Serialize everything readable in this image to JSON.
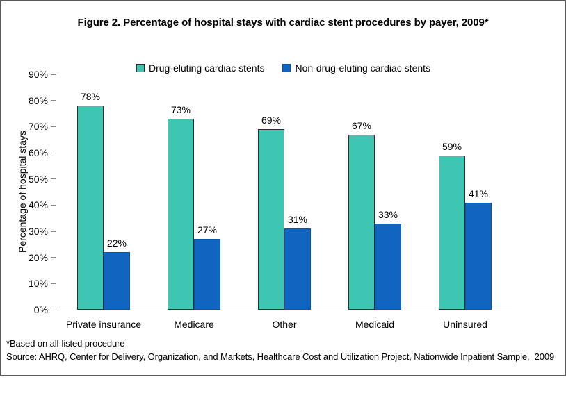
{
  "figure": {
    "footnote_asterisk": "*Based on all-listed procedure",
    "source": "Source: AHRQ, Center for Delivery, Organization, and Markets, Healthcare Cost and Utilization Project, Nationwide Inpatient Sample,  2009"
  },
  "chart_data": {
    "type": "bar",
    "title": "Figure 2. Percentage of hospital stays with cardiac stent procedures by payer, 2009*",
    "categories": [
      "Private insurance",
      "Medicare",
      "Other",
      "Medicaid",
      "Uninsured"
    ],
    "series": [
      {
        "name": "Drug-eluting cardiac stents",
        "color": "#3FC6B3",
        "border_color": "#2E2E2E",
        "values": [
          78,
          73,
          69,
          67,
          59
        ]
      },
      {
        "name": "Non-drug-eluting cardiac stents",
        "color": "#0F65C0",
        "border_color": "#0C55A0",
        "values": [
          22,
          27,
          31,
          33,
          41
        ]
      }
    ],
    "xlabel": "",
    "ylabel": "Percentage of hospital stays",
    "ylim": [
      0,
      90
    ],
    "ytick_step": 10,
    "tick_suffix": "%",
    "value_label_suffix": "%",
    "grid": false,
    "legend_position": "top",
    "axis_color": "#8C8C8C",
    "figure_border_color": "#595959"
  }
}
